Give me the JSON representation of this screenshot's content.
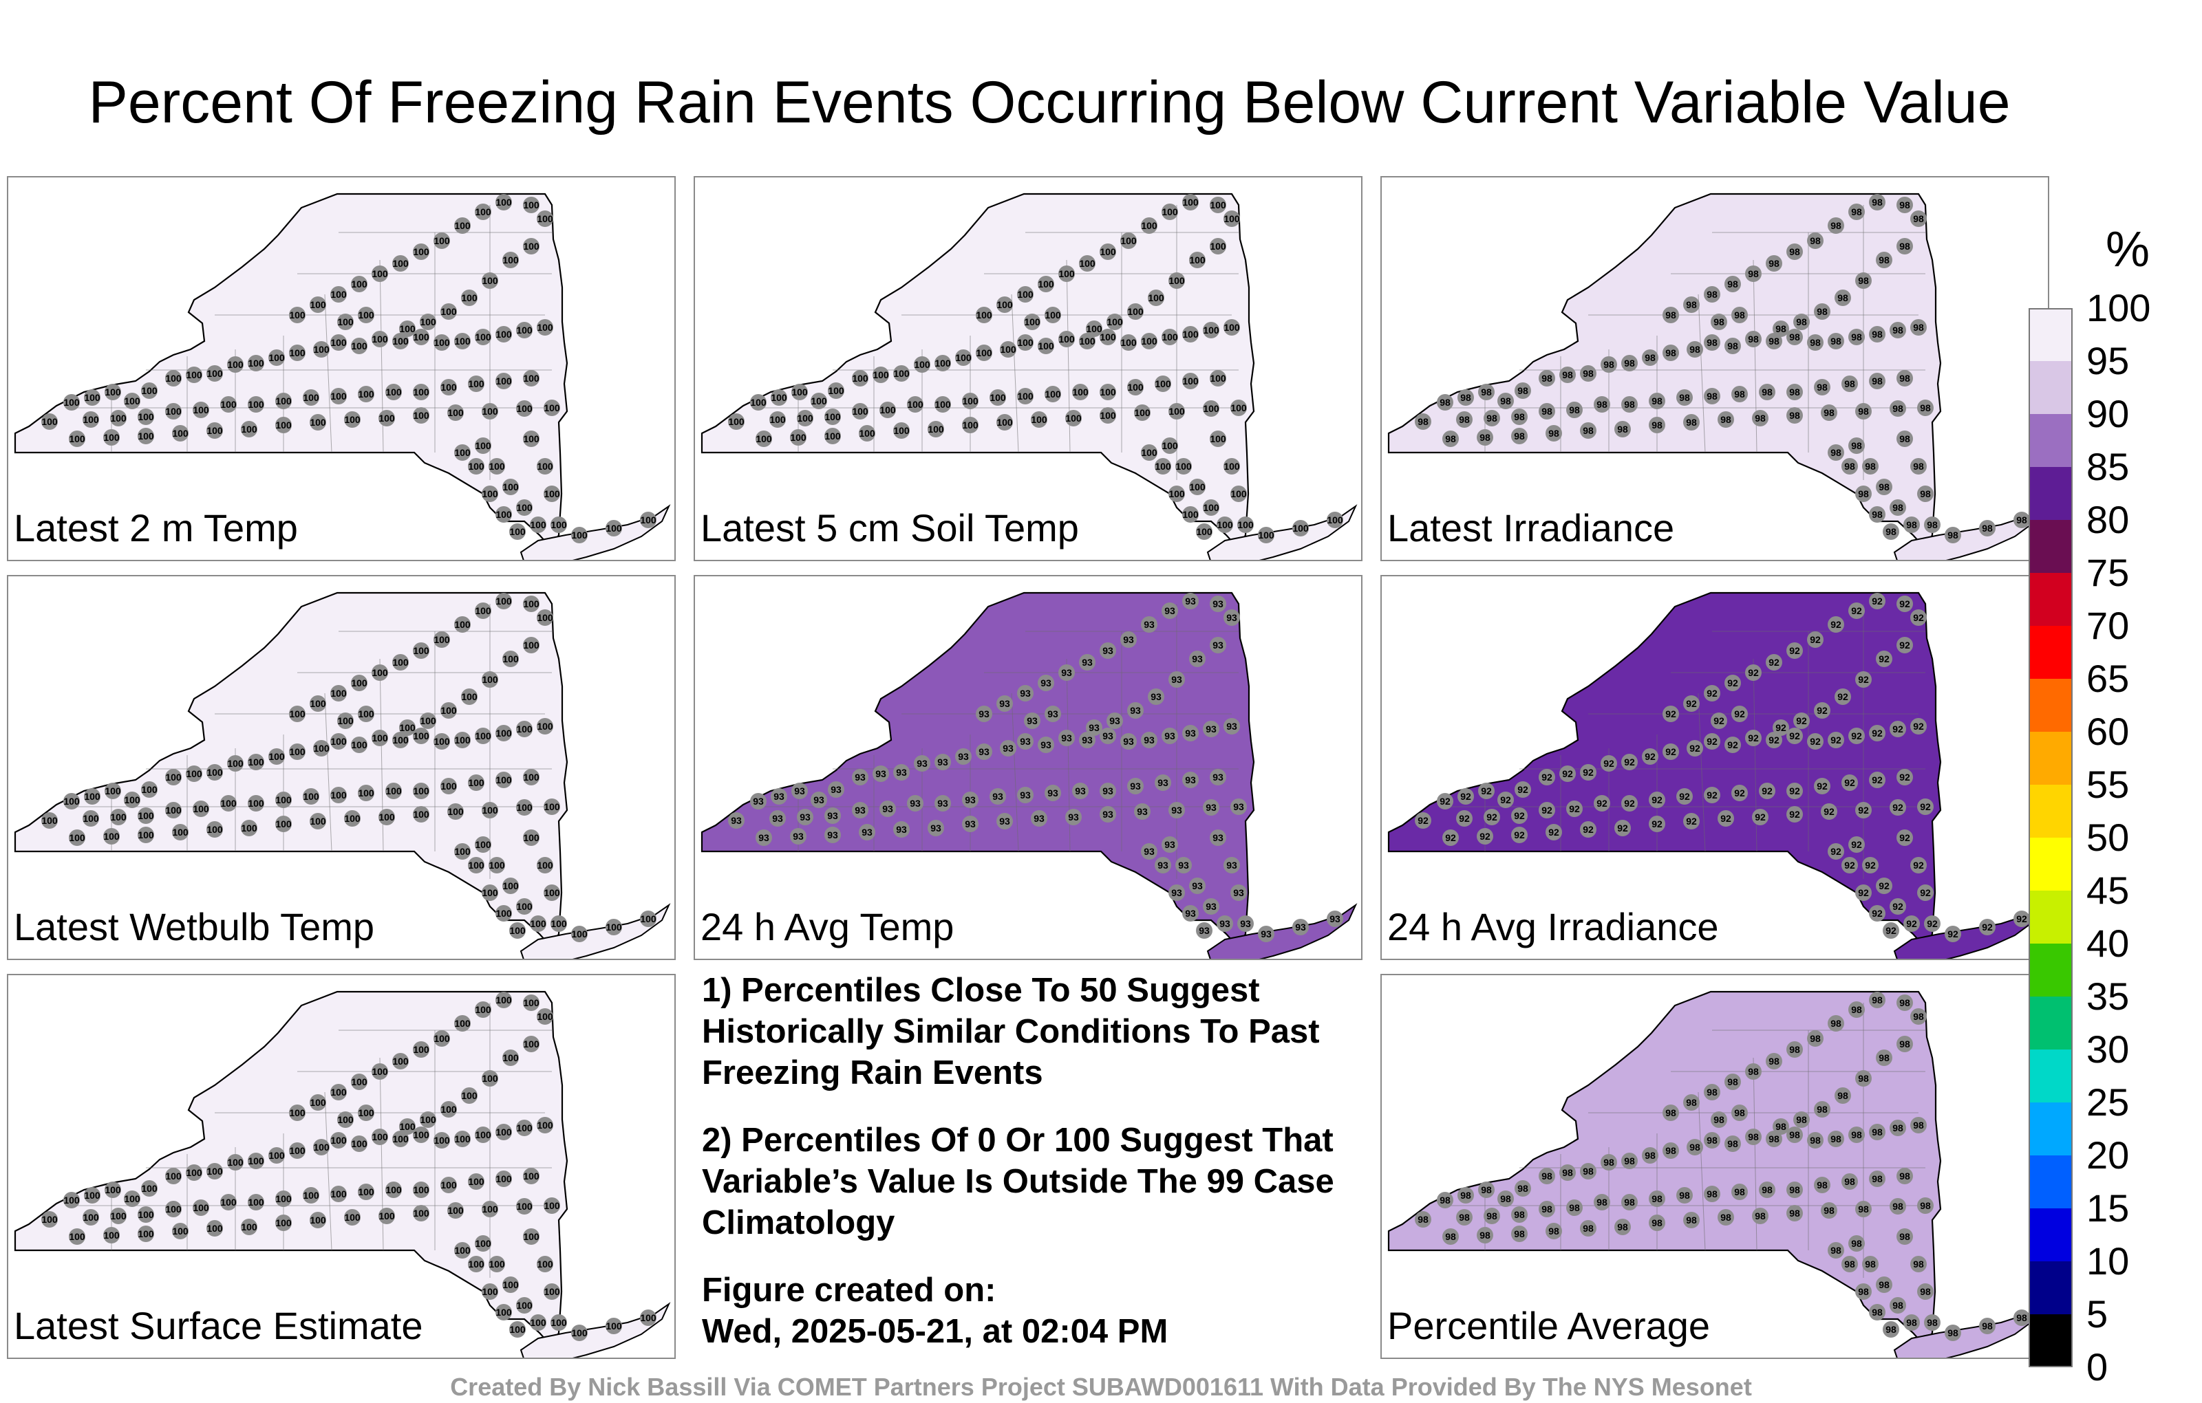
{
  "title": "Percent Of Freezing Rain Events Occurring Below Current Variable Value",
  "colorbar": {
    "unit": "%",
    "ticks": [
      "100",
      "95",
      "90",
      "85",
      "80",
      "75",
      "70",
      "65",
      "60",
      "55",
      "50",
      "45",
      "40",
      "35",
      "30",
      "25",
      "20",
      "15",
      "10",
      "5",
      "0"
    ],
    "stops": [
      "#f4eff8",
      "#d9c7e6",
      "#9b6fc1",
      "#5e1d95",
      "#6a0e52",
      "#d2001f",
      "#ff0000",
      "#ff6a00",
      "#ffaa00",
      "#ffd500",
      "#ffff00",
      "#c8f000",
      "#39c800",
      "#00c070",
      "#00d8c8",
      "#00a8ff",
      "#0060ff",
      "#0000e0",
      "#00008a",
      "#000000"
    ]
  },
  "panels": [
    {
      "id": "t2m",
      "label": "Latest 2 m Temp",
      "fill": "#f4eff8",
      "value": 100
    },
    {
      "id": "soil",
      "label": "Latest 5 cm Soil Temp",
      "fill": "#f4eff8",
      "value": 100
    },
    {
      "id": "irr",
      "label": "Latest Irradiance",
      "fill": "#ece2f3",
      "value": 98
    },
    {
      "id": "wb",
      "label": "Latest Wetbulb Temp",
      "fill": "#f4eff8",
      "value": 100
    },
    {
      "id": "avgt",
      "label": "24 h Avg Temp",
      "fill": "#8c58b8",
      "value": 93
    },
    {
      "id": "avgirr",
      "label": "24 h Avg Irradiance",
      "fill": "#6a2aa6",
      "value": 92
    },
    {
      "id": "sfc",
      "label": "Latest Surface Estimate",
      "fill": "#f4eff8",
      "value": 100
    },
    {
      "id": "pavg",
      "label": "Percentile Average",
      "fill": "#c8ade0",
      "value": 98
    }
  ],
  "notes": {
    "n1": "1) Percentiles Close To 50 Suggest Historically Similar Conditions To Past Freezing Rain Events",
    "n2": "2) Percentiles Of 0 Or 100 Suggest That Variable’s Value Is Outside The 99 Case Climatology",
    "n3a": "Figure created on:",
    "n3b": "Wed, 2025-05-21, at 02:04 PM"
  },
  "credit": "Created By Nick Bassill Via COMET Partners Project SUBAWD001611 With Data Provided By The NYS Mesonet"
}
